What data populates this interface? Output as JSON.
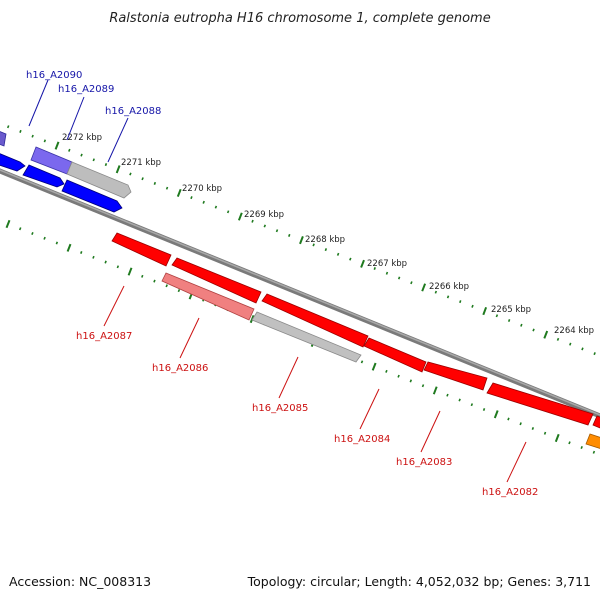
{
  "title": "Ralstonia eutropha H16 chromosome 1, complete genome",
  "footer": {
    "accession": "Accession: NC_008313",
    "summary": "Topology: circular; Length: 4,052,032 bp; Genes: 3,711"
  },
  "colors": {
    "backbone": "#7a7a7a",
    "tick": "#1f7a1f",
    "forward_strand": "#0000ff",
    "forward_strand_light": "#6a5acd",
    "reverse_strand": "#ff0000",
    "reverse_strand_light": "#f08080",
    "unassigned": "#c0c0c0",
    "orange_feature": "#ff8c00",
    "forward_label": "#1515a8",
    "reverse_label": "#cc1111"
  },
  "ticks": [
    {
      "label": "2272 kbp"
    },
    {
      "label": "2271 kbp"
    },
    {
      "label": "2270 kbp"
    },
    {
      "label": "2269 kbp"
    },
    {
      "label": "2268 kbp"
    },
    {
      "label": "2267 kbp"
    },
    {
      "label": "2266 kbp"
    },
    {
      "label": "2265 kbp"
    },
    {
      "label": "2264 kbp"
    }
  ],
  "genes_forward": [
    {
      "label": "h16_A2090"
    },
    {
      "label": "h16_A2089"
    },
    {
      "label": "h16_A2088"
    }
  ],
  "genes_reverse": [
    {
      "label": "h16_A2087"
    },
    {
      "label": "h16_A2086"
    },
    {
      "label": "h16_A2085"
    },
    {
      "label": "h16_A2084"
    },
    {
      "label": "h16_A2083"
    },
    {
      "label": "h16_A2082"
    }
  ]
}
